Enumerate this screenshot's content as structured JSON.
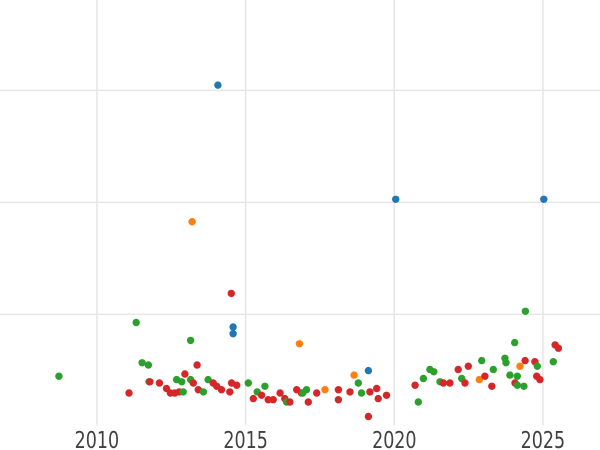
{
  "chart_data": {
    "type": "scatter",
    "title": "",
    "xlabel": "",
    "ylabel": "",
    "x_ticks": [
      2010,
      2015,
      2020,
      2025
    ],
    "x_tick_labels": [
      "2010",
      "2015",
      "2020",
      "2025"
    ],
    "xlim": [
      2006.74,
      2026.92
    ],
    "ylim": [
      0,
      3.8
    ],
    "y_gridlines": [
      1,
      2,
      3
    ],
    "y_tick_labels_visible": false,
    "grid": true,
    "legend": false,
    "colors": {
      "blue": "#1f77b4",
      "orange": "#ff7f0e",
      "green": "#2ca02c",
      "red": "#d62728"
    },
    "series": [
      {
        "name": "blue",
        "color_key": "blue",
        "points": [
          [
            2014.07,
            3.04
          ],
          [
            2020.05,
            2.02
          ],
          [
            2025.03,
            2.02
          ],
          [
            2014.58,
            0.88
          ],
          [
            2014.58,
            0.82
          ],
          [
            2019.13,
            0.49
          ]
        ]
      },
      {
        "name": "orange",
        "color_key": "orange",
        "points": [
          [
            2013.2,
            1.82
          ],
          [
            2016.81,
            0.73
          ],
          [
            2018.65,
            0.45
          ],
          [
            2017.67,
            0.32
          ],
          [
            2022.86,
            0.41
          ],
          [
            2024.23,
            0.53
          ]
        ]
      },
      {
        "name": "green",
        "color_key": "green",
        "points": [
          [
            2008.72,
            0.44
          ],
          [
            2011.32,
            0.92
          ],
          [
            2011.52,
            0.56
          ],
          [
            2011.73,
            0.54
          ],
          [
            2011.75,
            0.39
          ],
          [
            2013.15,
            0.76
          ],
          [
            2012.68,
            0.41
          ],
          [
            2012.85,
            0.39
          ],
          [
            2013.15,
            0.41
          ],
          [
            2012.9,
            0.3
          ],
          [
            2013.58,
            0.3
          ],
          [
            2013.74,
            0.41
          ],
          [
            2015.09,
            0.38
          ],
          [
            2015.39,
            0.3
          ],
          [
            2015.65,
            0.35
          ],
          [
            2016.38,
            0.21
          ],
          [
            2016.92,
            0.29
          ],
          [
            2017.05,
            0.32
          ],
          [
            2018.79,
            0.38
          ],
          [
            2018.9,
            0.29
          ],
          [
            2020.81,
            0.21
          ],
          [
            2020.98,
            0.42
          ],
          [
            2021.2,
            0.5
          ],
          [
            2021.33,
            0.48
          ],
          [
            2021.54,
            0.39
          ],
          [
            2022.27,
            0.42
          ],
          [
            2022.94,
            0.58
          ],
          [
            2023.33,
            0.5
          ],
          [
            2023.72,
            0.6
          ],
          [
            2023.76,
            0.56
          ],
          [
            2023.89,
            0.45
          ],
          [
            2024.05,
            0.74
          ],
          [
            2024.14,
            0.44
          ],
          [
            2024.14,
            0.36
          ],
          [
            2024.36,
            0.35
          ],
          [
            2024.41,
            1.02
          ],
          [
            2024.81,
            0.53
          ],
          [
            2025.35,
            0.57
          ]
        ]
      },
      {
        "name": "red",
        "color_key": "red",
        "points": [
          [
            2011.08,
            0.29
          ],
          [
            2011.78,
            0.39
          ],
          [
            2012.1,
            0.38
          ],
          [
            2012.34,
            0.33
          ],
          [
            2012.47,
            0.29
          ],
          [
            2012.62,
            0.29
          ],
          [
            2012.77,
            0.3
          ],
          [
            2012.96,
            0.46
          ],
          [
            2013.24,
            0.38
          ],
          [
            2013.37,
            0.54
          ],
          [
            2013.41,
            0.32
          ],
          [
            2013.91,
            0.38
          ],
          [
            2014.03,
            0.35
          ],
          [
            2014.19,
            0.32
          ],
          [
            2014.53,
            0.38
          ],
          [
            2014.7,
            0.36
          ],
          [
            2014.47,
            0.3
          ],
          [
            2014.52,
            1.18
          ],
          [
            2015.26,
            0.24
          ],
          [
            2015.54,
            0.27
          ],
          [
            2015.76,
            0.23
          ],
          [
            2015.93,
            0.23
          ],
          [
            2016.16,
            0.29
          ],
          [
            2016.32,
            0.24
          ],
          [
            2016.49,
            0.21
          ],
          [
            2016.72,
            0.32
          ],
          [
            2016.88,
            0.29
          ],
          [
            2017.11,
            0.21
          ],
          [
            2017.39,
            0.29
          ],
          [
            2018.12,
            0.32
          ],
          [
            2018.12,
            0.23
          ],
          [
            2018.51,
            0.3
          ],
          [
            2019.18,
            0.3
          ],
          [
            2019.41,
            0.33
          ],
          [
            2019.46,
            0.24
          ],
          [
            2019.74,
            0.27
          ],
          [
            2019.13,
            0.08
          ],
          [
            2020.7,
            0.36
          ],
          [
            2021.65,
            0.38
          ],
          [
            2021.87,
            0.38
          ],
          [
            2022.15,
            0.5
          ],
          [
            2022.38,
            0.38
          ],
          [
            2022.49,
            0.53
          ],
          [
            2023.05,
            0.44
          ],
          [
            2023.28,
            0.35
          ],
          [
            2024.06,
            0.38
          ],
          [
            2024.4,
            0.58
          ],
          [
            2024.73,
            0.57
          ],
          [
            2024.79,
            0.44
          ],
          [
            2024.9,
            0.41
          ],
          [
            2025.41,
            0.72
          ],
          [
            2025.52,
            0.69
          ]
        ]
      }
    ]
  },
  "style": {
    "background": "#ffffff",
    "grid_color": "#e6e6e6",
    "tick_label_color": "#414141",
    "tick_font_size_px": 23
  }
}
